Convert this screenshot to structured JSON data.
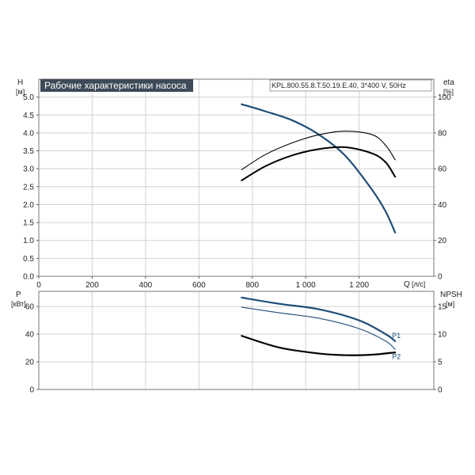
{
  "chart_data": [
    {
      "type": "line",
      "title": "Рабочие характеристики насоса",
      "model": "KPL.800.55.8.T.50.19.E.40, 3*400 V, 50Hz",
      "xlabel": "Q [л/с]",
      "x_axis_label": "Q",
      "x_axis_unit": "[л/с]",
      "xlim": [
        0,
        1480
      ],
      "x_ticks": [
        0,
        200,
        400,
        600,
        800,
        1000,
        1200
      ],
      "x_tick_labels": [
        "0",
        "200",
        "400",
        "600",
        "800",
        "1 000",
        "1 200"
      ],
      "ylabel": "H [м]",
      "y_axis_label": "H",
      "y_axis_unit": "[м]",
      "ylim": [
        0,
        5.5
      ],
      "y_ticks": [
        0,
        0.5,
        1,
        1.5,
        2,
        2.5,
        3,
        3.5,
        4,
        4.5,
        5
      ],
      "y_tick_labels": [
        "0.0",
        "0.5",
        "1.0",
        "1.5",
        "2.0",
        "2.5",
        "3.0",
        "3.5",
        "4.0",
        "4.5",
        "5.0"
      ],
      "y2label": "eta [%]",
      "y2_axis_label": "eta",
      "y2_axis_unit": "[%]",
      "y2lim": [
        0,
        110
      ],
      "y2_ticks": [
        0,
        20,
        40,
        60,
        80,
        100
      ],
      "y2_tick_labels": [
        "0",
        "20",
        "40",
        "60",
        "80",
        "100"
      ],
      "grid": true,
      "series": [
        {
          "axis": "y",
          "color": "#1f4e79",
          "width": 2.2,
          "x": [
            760,
            850,
            950,
            1050,
            1150,
            1250,
            1300,
            1335
          ],
          "y": [
            4.8,
            4.6,
            4.35,
            3.95,
            3.35,
            2.4,
            1.8,
            1.22
          ]
        },
        {
          "axis": "y2",
          "color": "#000000",
          "width": 1.1,
          "x": [
            760,
            850,
            950,
            1050,
            1150,
            1250,
            1300,
            1335
          ],
          "y": [
            59.5,
            68,
            74.5,
            79,
            81,
            79,
            73,
            65
          ]
        },
        {
          "axis": "y2",
          "color": "#000000",
          "width": 2.0,
          "x": [
            760,
            850,
            950,
            1050,
            1150,
            1250,
            1300,
            1335
          ],
          "y": [
            53.5,
            61.5,
            67.5,
            71,
            72,
            68.5,
            63.5,
            55.5
          ]
        }
      ]
    },
    {
      "type": "line",
      "xlim": [
        0,
        1480
      ],
      "x_ticks": [
        0,
        200,
        400,
        600,
        800,
        1000,
        1200
      ],
      "ylabel": "P [кВт]",
      "y_axis_label": "P",
      "y_axis_unit": "[кВт]",
      "ylim": [
        0,
        71
      ],
      "y_ticks": [
        0,
        20,
        40,
        60
      ],
      "y_tick_labels": [
        "0",
        "20",
        "40",
        "60"
      ],
      "y2label": "NPSH [м]",
      "y2_axis_label": "NPSH",
      "y2_axis_unit": "[м]",
      "y2lim": [
        0,
        17.75
      ],
      "y2_ticks": [
        0,
        5,
        10,
        15
      ],
      "y2_tick_labels": [
        "0",
        "5",
        "10",
        "15"
      ],
      "grid": true,
      "series": [
        {
          "name": "P1",
          "axis": "y",
          "color": "#1f4e79",
          "width": 2.2,
          "x": [
            760,
            900,
            1050,
            1200,
            1300,
            1335
          ],
          "y": [
            66.5,
            62,
            58,
            50,
            40,
            35
          ]
        },
        {
          "name": "P2",
          "axis": "y",
          "color": "#1f4e79",
          "width": 1.1,
          "x": [
            760,
            900,
            1050,
            1200,
            1300,
            1335
          ],
          "y": [
            59.5,
            55.5,
            51.5,
            44,
            35,
            29
          ]
        },
        {
          "axis": "y2",
          "color": "#000000",
          "width": 2.2,
          "x": [
            760,
            900,
            1050,
            1150,
            1250,
            1335
          ],
          "y": [
            9.7,
            7.6,
            6.5,
            6.2,
            6.3,
            6.7
          ]
        }
      ]
    }
  ]
}
